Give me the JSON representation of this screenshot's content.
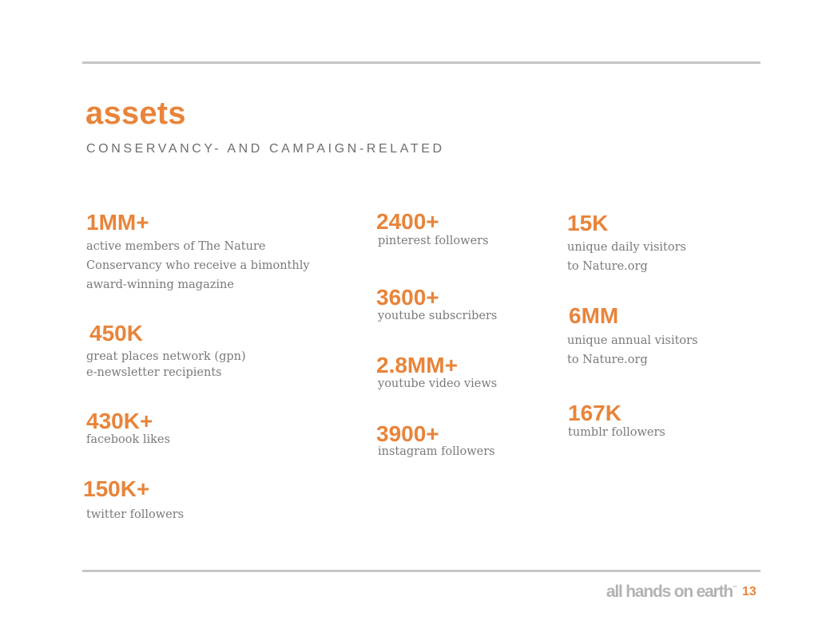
{
  "header": {
    "title": "assets",
    "subtitle": "CONSERVANCY- AND CAMPAIGN-RELATED"
  },
  "columns": [
    {
      "stats": [
        {
          "value": "1MM+",
          "description": "active members of The Nature\nConservancy who receive a bimonthly\naward-winning magazine"
        },
        {
          "value": "450K",
          "description": "great places network (gpn)\ne-newsletter recipients"
        },
        {
          "value": "430K+",
          "description": "facebook likes"
        },
        {
          "value": "150K+",
          "description": "twitter followers"
        }
      ]
    },
    {
      "stats": [
        {
          "value": "2400+",
          "description": "pinterest followers"
        },
        {
          "value": "3600+",
          "description": "youtube subscribers"
        },
        {
          "value": "2.8MM+",
          "description": "youtube video views"
        },
        {
          "value": "3900+",
          "description": "instagram followers"
        }
      ]
    },
    {
      "stats": [
        {
          "value": "15K",
          "description": "unique daily visitors\nto Nature.org"
        },
        {
          "value": "6MM",
          "description": "unique annual visitors\nto Nature.org"
        },
        {
          "value": "167K",
          "description": "tumblr followers"
        }
      ]
    }
  ],
  "footer": {
    "brand": "all hands on earth",
    "trademark": "™",
    "page_number": "13"
  },
  "colors": {
    "accent": "#e8843a",
    "body_text": "#7a7a7a",
    "subtitle_text": "#6e6e6e",
    "rule": "#c6c6c6",
    "brand_text": "#b3b3b3"
  }
}
